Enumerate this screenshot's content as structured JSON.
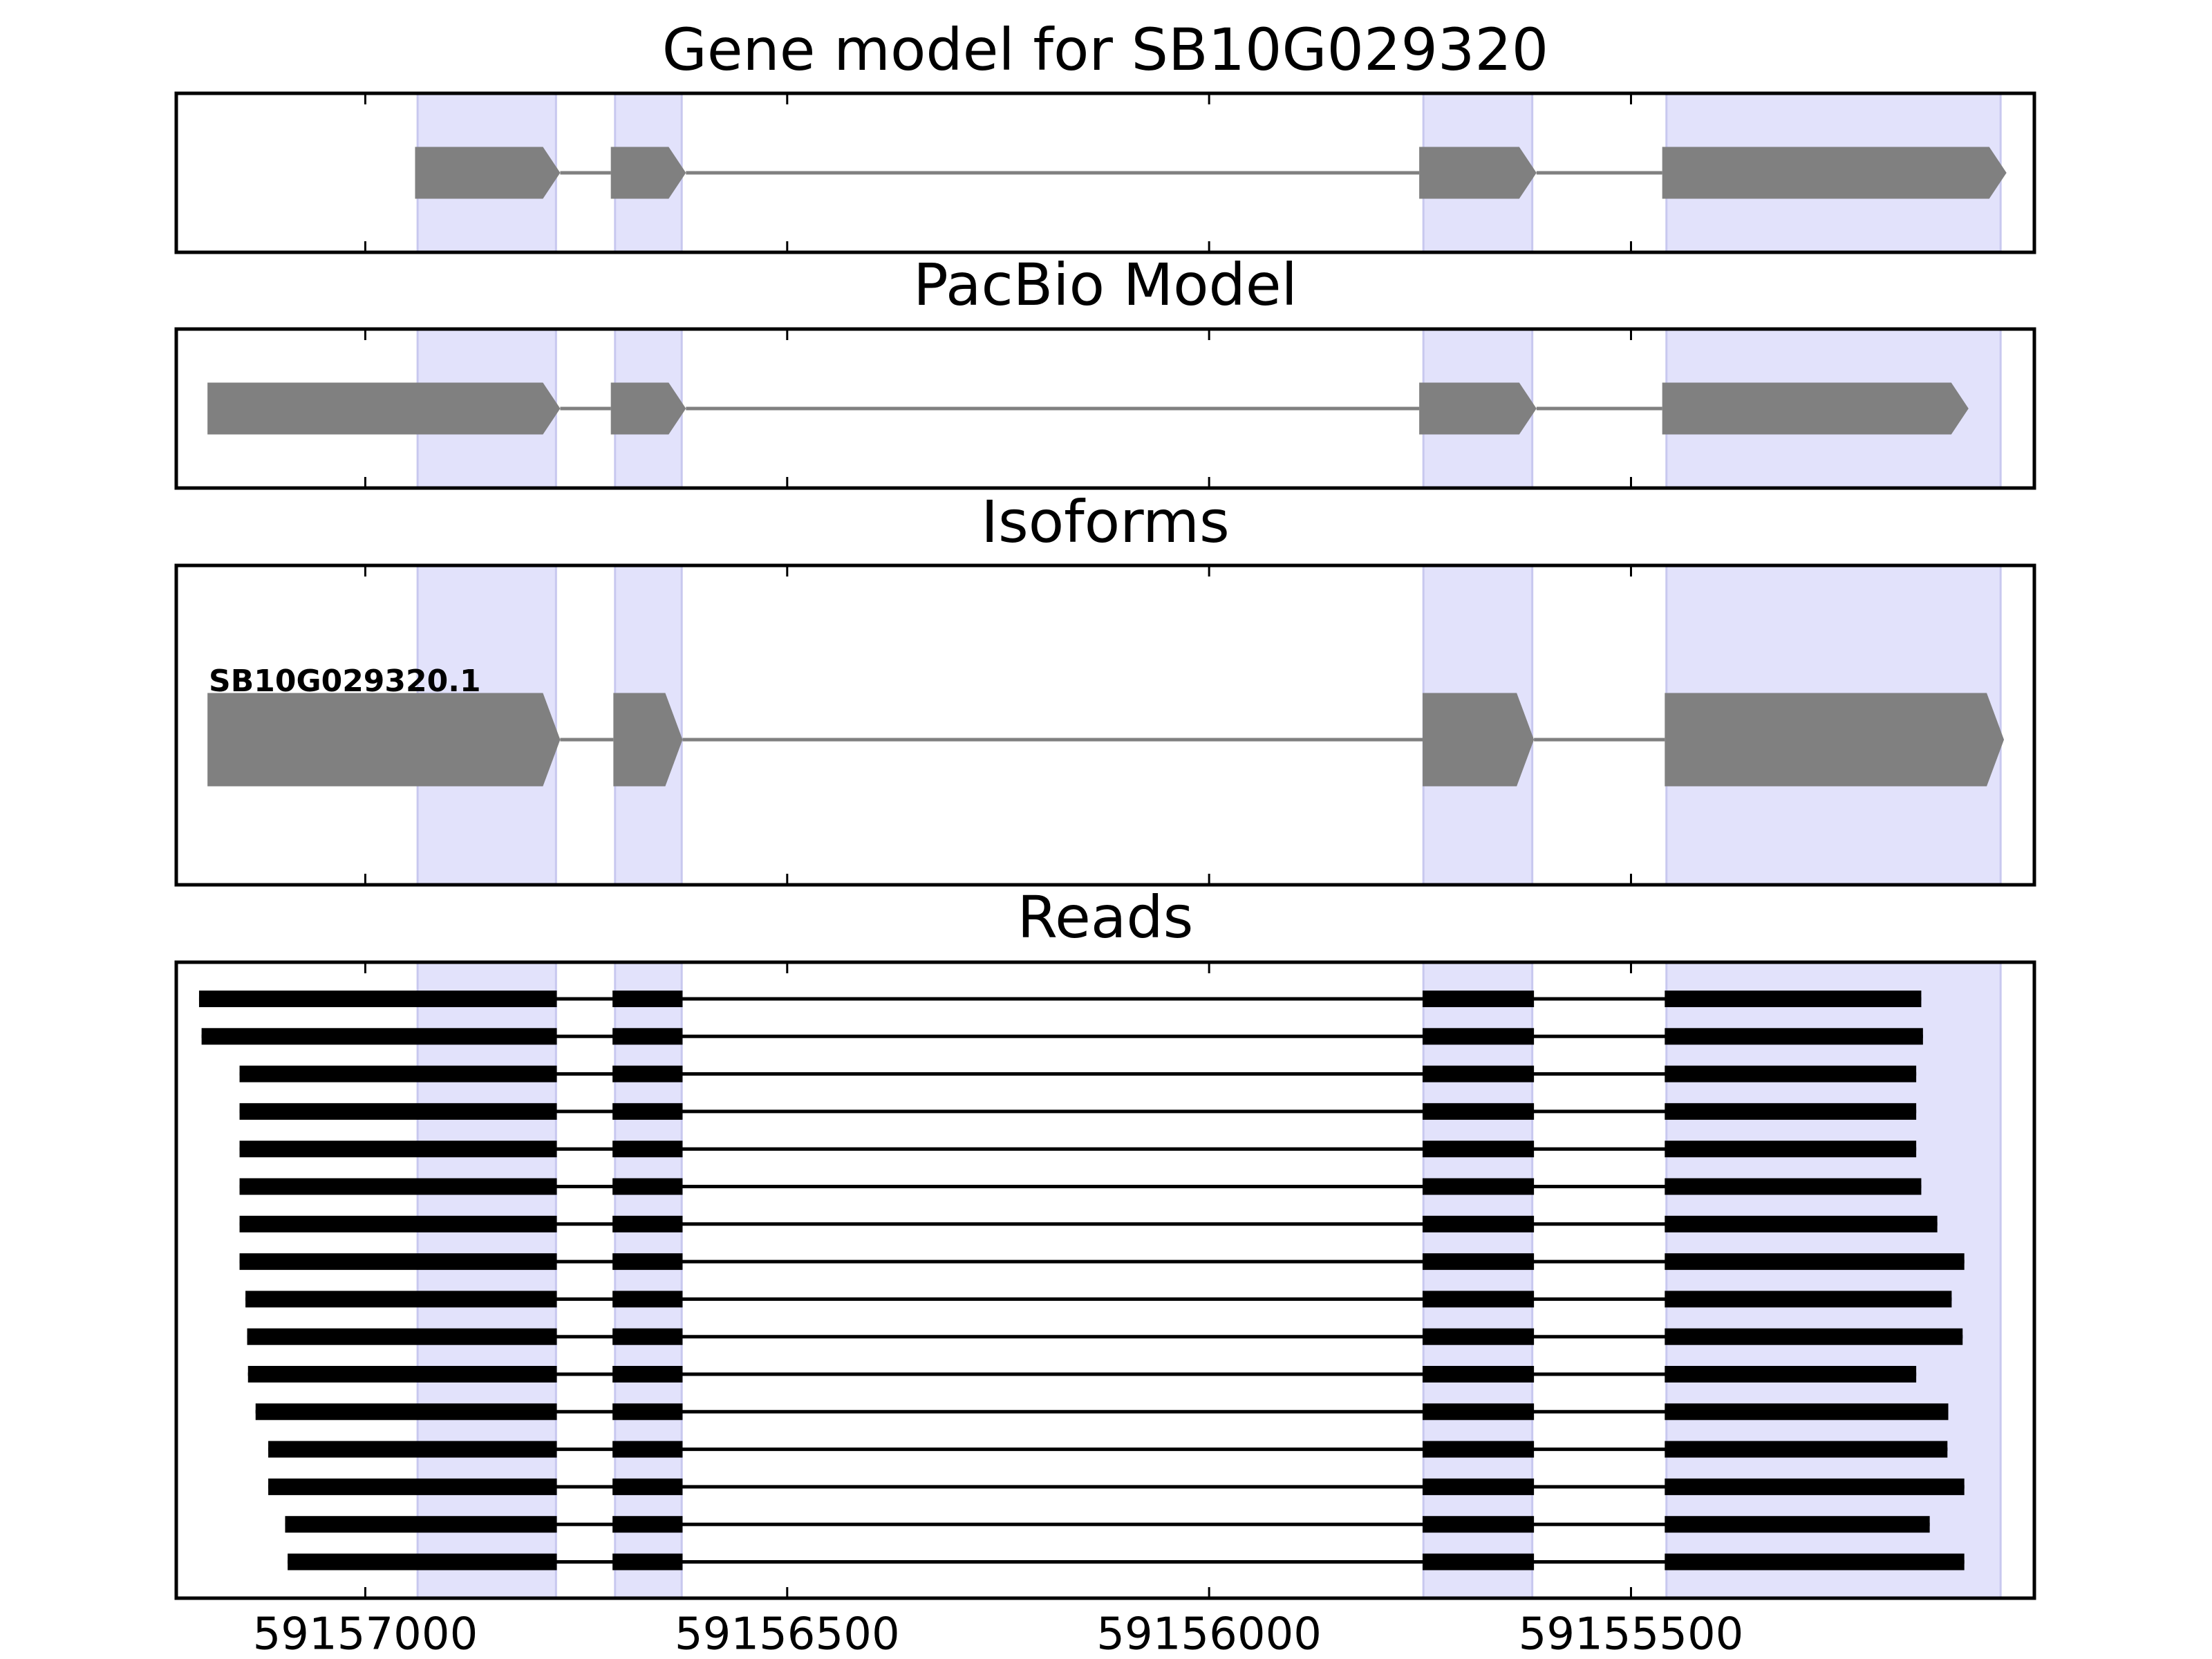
{
  "chart_data": [
    {
      "type": "gene-model",
      "title": "Gene model for SB10G029320",
      "xlim": [
        59157224,
        59155022
      ],
      "xticks": [
        59157000,
        59156500,
        59156000,
        59155500
      ],
      "shade_color": "#e2e2fb",
      "color": "#808080",
      "shaded_regions": [
        [
          59156938,
          59156774
        ],
        [
          59156704,
          59156625
        ],
        [
          59155746,
          59155617
        ],
        [
          59155458,
          59155062
        ]
      ],
      "exons": [
        [
          59156941,
          59156769
        ],
        [
          59156709,
          59156620
        ],
        [
          59155751,
          59155612
        ],
        [
          59155463,
          59155055
        ]
      ]
    },
    {
      "type": "gene-model",
      "title": "PacBio Model",
      "xlim": [
        59157224,
        59155022
      ],
      "xticks": [
        59157000,
        59156500,
        59156000,
        59155500
      ],
      "shade_color": "#e2e2fb",
      "color": "#808080",
      "shaded_regions": [
        [
          59156938,
          59156774
        ],
        [
          59156704,
          59156625
        ],
        [
          59155746,
          59155617
        ],
        [
          59155458,
          59155062
        ]
      ],
      "exons": [
        [
          59157187,
          59156769
        ],
        [
          59156709,
          59156620
        ],
        [
          59155751,
          59155612
        ],
        [
          59155463,
          59155100
        ]
      ]
    },
    {
      "type": "gene-model",
      "title": "Isoforms",
      "label": "SB10G029320.1",
      "xlim": [
        59157224,
        59155022
      ],
      "xticks": [
        59157000,
        59156500,
        59156000,
        59155500
      ],
      "shade_color": "#e2e2fb",
      "color": "#808080",
      "shaded_regions": [
        [
          59156938,
          59156774
        ],
        [
          59156704,
          59156625
        ],
        [
          59155746,
          59155617
        ],
        [
          59155458,
          59155062
        ]
      ],
      "exons": [
        [
          59157187,
          59156769
        ],
        [
          59156706,
          59156624
        ],
        [
          59155747,
          59155615
        ],
        [
          59155460,
          59155058
        ]
      ]
    },
    {
      "type": "reads",
      "title": "Reads",
      "xlim": [
        59157224,
        59155022
      ],
      "xticks": [
        59157000,
        59156500,
        59156000,
        59155500
      ],
      "shade_color": "#e2e2fb",
      "color": "#000000",
      "shaded_regions": [
        [
          59156938,
          59156774
        ],
        [
          59156704,
          59156625
        ],
        [
          59155746,
          59155617
        ],
        [
          59155458,
          59155062
        ]
      ],
      "reads": [
        [
          [
            59157197,
            59156773
          ],
          [
            59156707,
            59156624
          ],
          [
            59155747,
            59155615
          ],
          [
            59155460,
            59155156
          ]
        ],
        [
          [
            59157194,
            59156773
          ],
          [
            59156707,
            59156624
          ],
          [
            59155747,
            59155615
          ],
          [
            59155460,
            59155154
          ]
        ],
        [
          [
            59157149,
            59156773
          ],
          [
            59156707,
            59156624
          ],
          [
            59155747,
            59155615
          ],
          [
            59155460,
            59155162
          ]
        ],
        [
          [
            59157149,
            59156773
          ],
          [
            59156707,
            59156624
          ],
          [
            59155747,
            59155615
          ],
          [
            59155460,
            59155162
          ]
        ],
        [
          [
            59157149,
            59156773
          ],
          [
            59156707,
            59156624
          ],
          [
            59155747,
            59155615
          ],
          [
            59155460,
            59155162
          ]
        ],
        [
          [
            59157149,
            59156773
          ],
          [
            59156707,
            59156624
          ],
          [
            59155747,
            59155615
          ],
          [
            59155460,
            59155156
          ]
        ],
        [
          [
            59157149,
            59156773
          ],
          [
            59156707,
            59156624
          ],
          [
            59155747,
            59155615
          ],
          [
            59155460,
            59155137
          ]
        ],
        [
          [
            59157149,
            59156773
          ],
          [
            59156707,
            59156624
          ],
          [
            59155747,
            59155615
          ],
          [
            59155460,
            59155105
          ]
        ],
        [
          [
            59157142,
            59156773
          ],
          [
            59156707,
            59156624
          ],
          [
            59155747,
            59155615
          ],
          [
            59155460,
            59155120
          ]
        ],
        [
          [
            59157140,
            59156773
          ],
          [
            59156707,
            59156624
          ],
          [
            59155747,
            59155615
          ],
          [
            59155460,
            59155107
          ]
        ],
        [
          [
            59157139,
            59156773
          ],
          [
            59156707,
            59156624
          ],
          [
            59155747,
            59155615
          ],
          [
            59155460,
            59155162
          ]
        ],
        [
          [
            59157130,
            59156773
          ],
          [
            59156707,
            59156624
          ],
          [
            59155747,
            59155615
          ],
          [
            59155460,
            59155124
          ]
        ],
        [
          [
            59157115,
            59156773
          ],
          [
            59156707,
            59156624
          ],
          [
            59155747,
            59155615
          ],
          [
            59155460,
            59155125
          ]
        ],
        [
          [
            59157115,
            59156773
          ],
          [
            59156707,
            59156624
          ],
          [
            59155747,
            59155615
          ],
          [
            59155460,
            59155105
          ]
        ],
        [
          [
            59157095,
            59156773
          ],
          [
            59156707,
            59156624
          ],
          [
            59155747,
            59155615
          ],
          [
            59155460,
            59155146
          ]
        ],
        [
          [
            59157092,
            59156773
          ],
          [
            59156707,
            59156624
          ],
          [
            59155747,
            59155615
          ],
          [
            59155460,
            59155105
          ]
        ]
      ]
    }
  ]
}
